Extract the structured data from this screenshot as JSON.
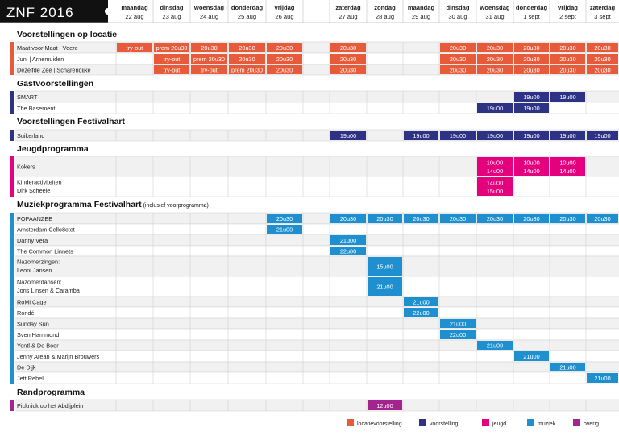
{
  "title": "ZNF 2016",
  "columns": [
    {
      "day": "maandag",
      "date": "22 aug"
    },
    {
      "day": "dinsdag",
      "date": "23 aug"
    },
    {
      "day": "woensdag",
      "date": "24 aug"
    },
    {
      "day": "donderdag",
      "date": "25 aug"
    },
    {
      "day": "vrijdag",
      "date": "26 aug"
    },
    {
      "day": "",
      "date": ""
    },
    {
      "day": "zaterdag",
      "date": "27 aug"
    },
    {
      "day": "zondag",
      "date": "28 aug"
    },
    {
      "day": "maandag",
      "date": "29 aug"
    },
    {
      "day": "dinsdag",
      "date": "30 aug"
    },
    {
      "day": "woensdag",
      "date": "31 aug"
    },
    {
      "day": "donderdag",
      "date": "1 sept"
    },
    {
      "day": "vrijdag",
      "date": "2 sept"
    },
    {
      "day": "zaterdag",
      "date": "3 sept"
    }
  ],
  "colors": {
    "locatievoorstelling": "#e85b3a",
    "voorstelling": "#2d3285",
    "jeugd": "#e5007e",
    "muziek": "#1e8fcf",
    "overig": "#a3248e"
  },
  "sections": [
    {
      "title": "Voorstellingen op locatie",
      "subtitle": "",
      "category": "locatievoorstelling",
      "rows": [
        {
          "name": [
            "Maat voor Maat | Veere"
          ],
          "cells": [
            [
              "try-out"
            ],
            [
              "prem 20u30"
            ],
            [
              "20u30"
            ],
            [
              "20u30"
            ],
            [
              "20u30"
            ],
            null,
            [
              "20u30"
            ],
            null,
            null,
            [
              "20u30"
            ],
            [
              "20u30"
            ],
            [
              "20u30"
            ],
            [
              "20u30"
            ],
            [
              "20u30"
            ]
          ]
        },
        {
          "name": [
            "Juni | Arnemuiden"
          ],
          "cells": [
            null,
            [
              "try-out"
            ],
            [
              "prem 20u30"
            ],
            [
              "20u30"
            ],
            [
              "20u30"
            ],
            null,
            [
              "20u30"
            ],
            null,
            null,
            [
              "20u30"
            ],
            [
              "20u30"
            ],
            [
              "20u30"
            ],
            [
              "20u30"
            ],
            [
              "20u30"
            ]
          ]
        },
        {
          "name": [
            "Dezelfde Zee | Scharendijke"
          ],
          "cells": [
            null,
            [
              "try-out"
            ],
            [
              "try-out"
            ],
            [
              "prem 20u30"
            ],
            [
              "20u30"
            ],
            null,
            [
              "20u30"
            ],
            null,
            null,
            [
              "20u30"
            ],
            [
              "20u30"
            ],
            [
              "20u30"
            ],
            [
              "20u30"
            ],
            [
              "20u30"
            ]
          ]
        }
      ]
    },
    {
      "title": "Gastvoorstellingen",
      "subtitle": "",
      "category": "voorstelling",
      "rows": [
        {
          "name": [
            "SMART"
          ],
          "cells": [
            null,
            null,
            null,
            null,
            null,
            null,
            null,
            null,
            null,
            null,
            null,
            [
              "19u00"
            ],
            [
              "19u00"
            ],
            null
          ]
        },
        {
          "name": [
            "The Basement"
          ],
          "cells": [
            null,
            null,
            null,
            null,
            null,
            null,
            null,
            null,
            null,
            null,
            [
              "19u00"
            ],
            [
              "19u00"
            ],
            null,
            null
          ]
        }
      ]
    },
    {
      "title": "Voorstellingen Festivalhart",
      "subtitle": "",
      "category": "voorstelling",
      "rows": [
        {
          "name": [
            "Suikerland"
          ],
          "cells": [
            null,
            null,
            null,
            null,
            null,
            null,
            [
              "19u00"
            ],
            null,
            [
              "19u00"
            ],
            [
              "19u00"
            ],
            [
              "19u00"
            ],
            [
              "19u00"
            ],
            [
              "19u00"
            ],
            [
              "19u00"
            ]
          ]
        }
      ]
    },
    {
      "title": "Jeugdprogramma",
      "subtitle": "",
      "category": "jeugd",
      "rows": [
        {
          "name": [
            "Kokers"
          ],
          "cells": [
            null,
            null,
            null,
            null,
            null,
            null,
            null,
            null,
            null,
            null,
            [
              "10u00",
              "14u00"
            ],
            [
              "10u00",
              "14u00"
            ],
            [
              "10u00",
              "14u00"
            ],
            null
          ]
        },
        {
          "name": [
            "Kinderactiviteiten",
            "Dirk Scheele"
          ],
          "cells": [
            null,
            null,
            null,
            null,
            null,
            null,
            null,
            null,
            null,
            null,
            [
              "14u00",
              "15u00"
            ],
            null,
            null,
            null
          ]
        }
      ]
    },
    {
      "title": "Muziekprogramma Festivalhart",
      "subtitle": "(inclusief voorprogramma)",
      "category": "muziek",
      "rows": [
        {
          "name": [
            "POPAANZEE"
          ],
          "cells": [
            null,
            null,
            null,
            null,
            [
              "20u30"
            ],
            null,
            [
              "20u30"
            ],
            [
              "20u30"
            ],
            [
              "20u30"
            ],
            [
              "20u30"
            ],
            [
              "20u30"
            ],
            [
              "20u30"
            ],
            [
              "20u30"
            ],
            [
              "20u30"
            ]
          ]
        },
        {
          "name": [
            "Amsterdam Cello8ctet"
          ],
          "cells": [
            null,
            null,
            null,
            null,
            [
              "21u00"
            ],
            null,
            null,
            null,
            null,
            null,
            null,
            null,
            null,
            null
          ]
        },
        {
          "name": [
            "Danny Vera"
          ],
          "cells": [
            null,
            null,
            null,
            null,
            null,
            null,
            [
              "21u00"
            ],
            null,
            null,
            null,
            null,
            null,
            null,
            null
          ]
        },
        {
          "name": [
            "The Common Linnets"
          ],
          "cells": [
            null,
            null,
            null,
            null,
            null,
            null,
            [
              "22u00"
            ],
            null,
            null,
            null,
            null,
            null,
            null,
            null
          ]
        },
        {
          "name": [
            "Nazomerzingen:",
            "Leoni Jansen"
          ],
          "cells": [
            null,
            null,
            null,
            null,
            null,
            null,
            null,
            [
              "15u00"
            ],
            null,
            null,
            null,
            null,
            null,
            null
          ]
        },
        {
          "name": [
            "Nazomerdansen:",
            "Joris Linsen & Caramba"
          ],
          "cells": [
            null,
            null,
            null,
            null,
            null,
            null,
            null,
            [
              "21u00"
            ],
            null,
            null,
            null,
            null,
            null,
            null
          ]
        },
        {
          "name": [
            "RoMi Cage"
          ],
          "cells": [
            null,
            null,
            null,
            null,
            null,
            null,
            null,
            null,
            [
              "21u00"
            ],
            null,
            null,
            null,
            null,
            null
          ]
        },
        {
          "name": [
            "Rondé"
          ],
          "cells": [
            null,
            null,
            null,
            null,
            null,
            null,
            null,
            null,
            [
              "22u00"
            ],
            null,
            null,
            null,
            null,
            null
          ]
        },
        {
          "name": [
            "Sunday Sun"
          ],
          "cells": [
            null,
            null,
            null,
            null,
            null,
            null,
            null,
            null,
            null,
            [
              "21u00"
            ],
            null,
            null,
            null,
            null
          ]
        },
        {
          "name": [
            "Sven Hammond"
          ],
          "cells": [
            null,
            null,
            null,
            null,
            null,
            null,
            null,
            null,
            null,
            [
              "22u00"
            ],
            null,
            null,
            null,
            null
          ]
        },
        {
          "name": [
            "Yentl & De Boer"
          ],
          "cells": [
            null,
            null,
            null,
            null,
            null,
            null,
            null,
            null,
            null,
            null,
            [
              "21u00"
            ],
            null,
            null,
            null
          ]
        },
        {
          "name": [
            "Jenny Arean & Marijn Brouwers"
          ],
          "cells": [
            null,
            null,
            null,
            null,
            null,
            null,
            null,
            null,
            null,
            null,
            null,
            [
              "21u00"
            ],
            null,
            null
          ]
        },
        {
          "name": [
            "De Dijk"
          ],
          "cells": [
            null,
            null,
            null,
            null,
            null,
            null,
            null,
            null,
            null,
            null,
            null,
            null,
            [
              "21u00"
            ],
            null
          ]
        },
        {
          "name": [
            "Jett Rebel"
          ],
          "cells": [
            null,
            null,
            null,
            null,
            null,
            null,
            null,
            null,
            null,
            null,
            null,
            null,
            null,
            [
              "21u00"
            ]
          ]
        }
      ]
    },
    {
      "title": "Randprogramma",
      "subtitle": "",
      "category": "overig",
      "rows": [
        {
          "name": [
            "Picknick op het Abdijplein"
          ],
          "cells": [
            null,
            null,
            null,
            null,
            null,
            null,
            null,
            [
              "12u00"
            ],
            null,
            null,
            null,
            null,
            null,
            null
          ]
        }
      ]
    }
  ],
  "legend": [
    {
      "label": "locatievoorstelling",
      "category": "locatievoorstelling"
    },
    {
      "label": "voorstelling",
      "category": "voorstelling"
    },
    {
      "label": "jeugd",
      "category": "jeugd"
    },
    {
      "label": "muziek",
      "category": "muziek"
    },
    {
      "label": "overig",
      "category": "overig"
    }
  ]
}
